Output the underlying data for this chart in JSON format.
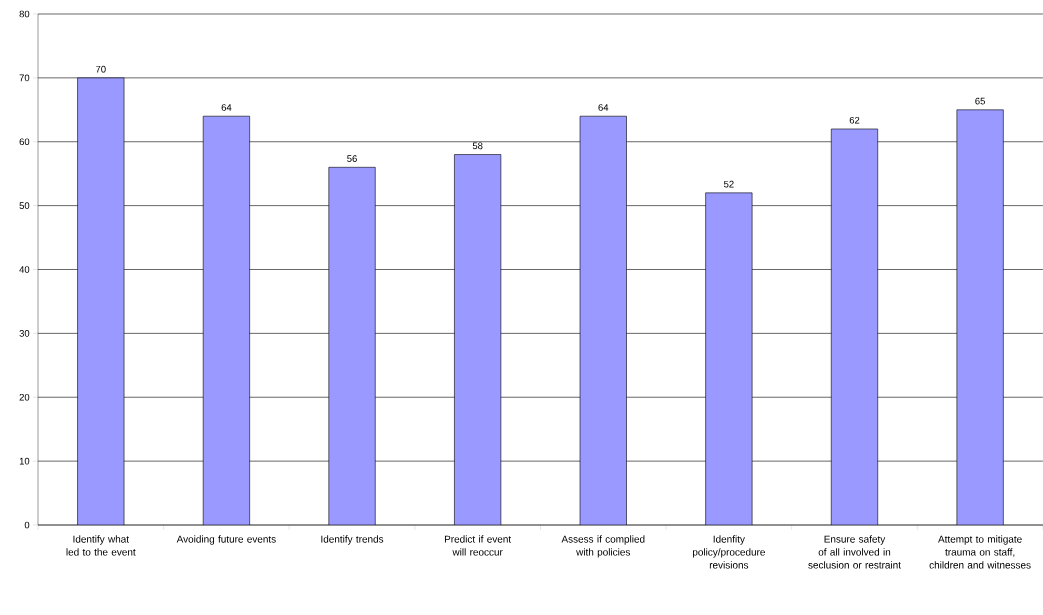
{
  "chart_data": {
    "type": "bar",
    "categories": [
      "Identify what led to the event",
      "Avoiding future events",
      "Identify trends",
      "Predict if event will reoccur",
      "Assess if complied with policies",
      "Idenfity policy/procedure revisions",
      "Ensure safety of all involved in seclusion or restraint",
      "Attempt to mitigate trauma on staff, children and witnesses"
    ],
    "values": [
      70,
      64,
      56,
      58,
      64,
      52,
      62,
      65
    ],
    "color": "#9999ff",
    "ylim": [
      0,
      80
    ],
    "yticks": [
      0,
      10,
      20,
      30,
      40,
      50,
      60,
      70,
      80
    ],
    "grid": "y",
    "data_labels": true
  }
}
